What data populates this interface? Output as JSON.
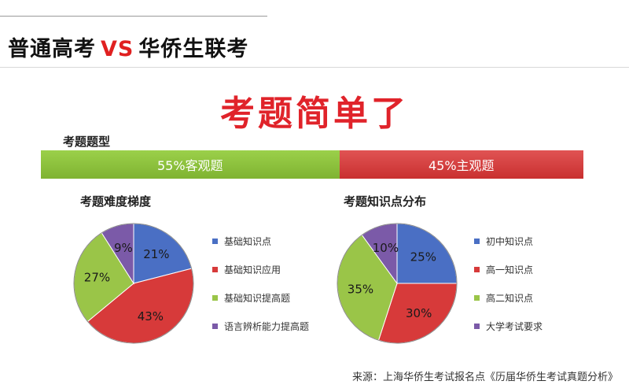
{
  "header": {
    "title_left": "普通高考",
    "title_vs": "VS",
    "title_right": "华侨生联考"
  },
  "headline": "考题简单了",
  "question_type": {
    "label": "考题题型",
    "segments": [
      {
        "label": "55%客观题",
        "value": 55,
        "color": "#8cc43d"
      },
      {
        "label": "45%主观题",
        "value": 45,
        "color": "#d23b3b"
      }
    ]
  },
  "chart_data": [
    {
      "type": "pie",
      "title": "考题难度梯度",
      "slices": [
        {
          "label": "基础知识点",
          "value": 21,
          "display": "21%",
          "color": "#4a6fc4"
        },
        {
          "label": "基础知识应用",
          "value": 43,
          "display": "43%",
          "color": "#d73a3a"
        },
        {
          "label": "基础知识提高题",
          "value": 27,
          "display": "27%",
          "color": "#9ac548"
        },
        {
          "label": "语言辨析能力提高题",
          "value": 9,
          "display": "9%",
          "color": "#7b5aa8"
        }
      ],
      "legend_position": "right"
    },
    {
      "type": "pie",
      "title": "考题知识点分布",
      "slices": [
        {
          "label": "初中知识点",
          "value": 25,
          "display": "25%",
          "color": "#4a6fc4"
        },
        {
          "label": "高一知识点",
          "value": 30,
          "display": "30%",
          "color": "#d73a3a"
        },
        {
          "label": "高二知识点",
          "value": 35,
          "display": "35%",
          "color": "#9ac548"
        },
        {
          "label": "大学考试要求",
          "value": 10,
          "display": "10%",
          "color": "#7b5aa8"
        }
      ],
      "legend_position": "right"
    }
  ],
  "source": "来源：上海华侨生考试报名点《历届华侨生考试真题分析》"
}
